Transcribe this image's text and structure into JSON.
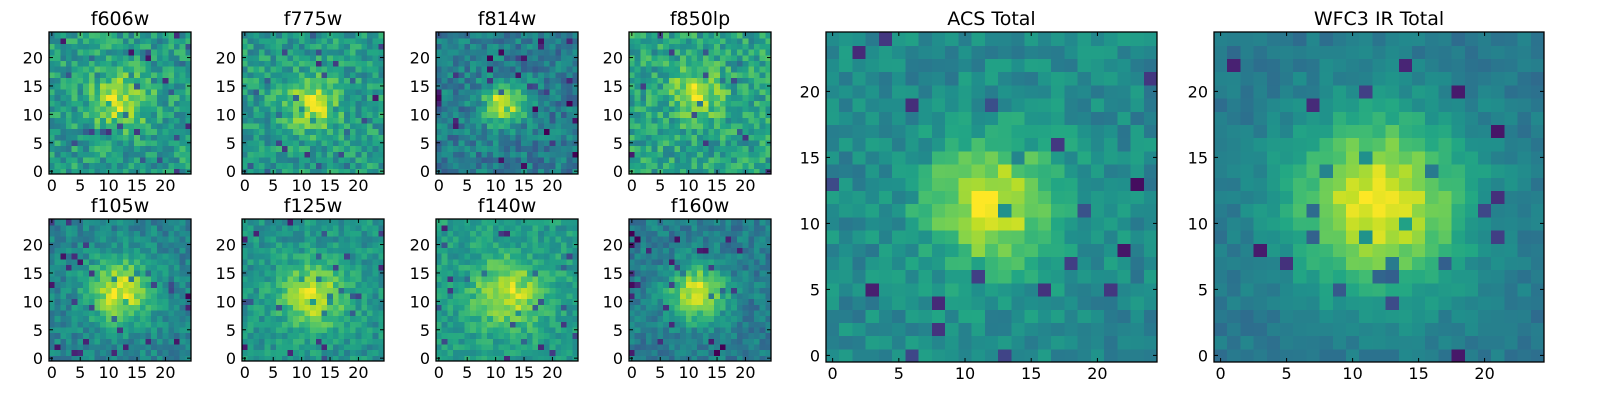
{
  "chart_data": [
    {
      "type": "heatmap",
      "title": "f606w",
      "x_ticks": [
        "0",
        "5",
        "10",
        "15",
        "20"
      ],
      "y_ticks": [
        "0",
        "5",
        "10",
        "15",
        "20"
      ],
      "xlim": [
        0,
        25
      ],
      "ylim": [
        0,
        25
      ],
      "center": [
        12,
        12.5
      ],
      "spread": 3.6,
      "peak_level": 0.9,
      "background_level": 0.55,
      "noise_level": 0.32,
      "seed": 11,
      "colormap": "viridis"
    },
    {
      "type": "heatmap",
      "title": "f775w",
      "x_ticks": [
        "0",
        "5",
        "10",
        "15",
        "20"
      ],
      "y_ticks": [
        "0",
        "5",
        "10",
        "15",
        "20"
      ],
      "xlim": [
        0,
        25
      ],
      "ylim": [
        0,
        25
      ],
      "center": [
        12,
        12
      ],
      "spread": 3.2,
      "peak_level": 0.92,
      "background_level": 0.55,
      "noise_level": 0.3,
      "seed": 23,
      "colormap": "viridis"
    },
    {
      "type": "heatmap",
      "title": "f814w",
      "x_ticks": [
        "0",
        "5",
        "10",
        "15",
        "20"
      ],
      "y_ticks": [
        "0",
        "5",
        "10",
        "15",
        "20"
      ],
      "xlim": [
        0,
        25
      ],
      "ylim": [
        0,
        25
      ],
      "center": [
        11.5,
        12
      ],
      "spread": 2.6,
      "peak_level": 0.95,
      "background_level": 0.42,
      "noise_level": 0.28,
      "seed": 37,
      "colormap": "viridis"
    },
    {
      "type": "heatmap",
      "title": "f850lp",
      "x_ticks": [
        "0",
        "5",
        "10",
        "15",
        "20"
      ],
      "y_ticks": [
        "0",
        "5",
        "10",
        "15",
        "20"
      ],
      "xlim": [
        0,
        25
      ],
      "ylim": [
        0,
        25
      ],
      "center": [
        11.5,
        14
      ],
      "spread": 3.0,
      "peak_level": 0.9,
      "background_level": 0.58,
      "noise_level": 0.32,
      "seed": 41,
      "colormap": "viridis"
    },
    {
      "type": "heatmap",
      "title": "f105w",
      "x_ticks": [
        "0",
        "5",
        "10",
        "15",
        "20"
      ],
      "y_ticks": [
        "0",
        "5",
        "10",
        "15",
        "20"
      ],
      "xlim": [
        0,
        25
      ],
      "ylim": [
        0,
        25
      ],
      "center": [
        12,
        12
      ],
      "spread": 4.0,
      "peak_level": 0.95,
      "background_level": 0.45,
      "noise_level": 0.22,
      "seed": 53,
      "colormap": "viridis"
    },
    {
      "type": "heatmap",
      "title": "f125w",
      "x_ticks": [
        "0",
        "5",
        "10",
        "15",
        "20"
      ],
      "y_ticks": [
        "0",
        "5",
        "10",
        "15",
        "20"
      ],
      "xlim": [
        0,
        25
      ],
      "ylim": [
        0,
        25
      ],
      "center": [
        12,
        11
      ],
      "spread": 4.0,
      "peak_level": 0.93,
      "background_level": 0.52,
      "noise_level": 0.22,
      "seed": 67,
      "colormap": "viridis"
    },
    {
      "type": "heatmap",
      "title": "f140w",
      "x_ticks": [
        "0",
        "5",
        "10",
        "15",
        "20"
      ],
      "y_ticks": [
        "0",
        "5",
        "10",
        "15",
        "20"
      ],
      "xlim": [
        0,
        25
      ],
      "ylim": [
        0,
        25
      ],
      "center": [
        12,
        11.5
      ],
      "spread": 4.2,
      "peak_level": 0.92,
      "background_level": 0.55,
      "noise_level": 0.22,
      "seed": 71,
      "colormap": "viridis"
    },
    {
      "type": "heatmap",
      "title": "f160w",
      "x_ticks": [
        "0",
        "5",
        "10",
        "15",
        "20"
      ],
      "y_ticks": [
        "0",
        "5",
        "10",
        "15",
        "20"
      ],
      "xlim": [
        0,
        25
      ],
      "ylim": [
        0,
        25
      ],
      "center": [
        11.5,
        11.5
      ],
      "spread": 3.4,
      "peak_level": 0.95,
      "background_level": 0.42,
      "noise_level": 0.22,
      "seed": 83,
      "colormap": "viridis"
    },
    {
      "type": "heatmap",
      "title": "ACS Total",
      "x_ticks": [
        "0",
        "5",
        "10",
        "15",
        "20"
      ],
      "y_ticks": [
        "0",
        "5",
        "10",
        "15",
        "20"
      ],
      "xlim": [
        0,
        25
      ],
      "ylim": [
        0,
        25
      ],
      "center": [
        12,
        11.5
      ],
      "spread": 3.4,
      "peak_level": 0.96,
      "background_level": 0.48,
      "noise_level": 0.2,
      "seed": 97,
      "colormap": "viridis"
    },
    {
      "type": "heatmap",
      "title": "WFC3 IR Total",
      "x_ticks": [
        "0",
        "5",
        "10",
        "15",
        "20"
      ],
      "y_ticks": [
        "0",
        "5",
        "10",
        "15",
        "20"
      ],
      "xlim": [
        0,
        25
      ],
      "ylim": [
        0,
        25
      ],
      "center": [
        12,
        11.5
      ],
      "spread": 4.8,
      "peak_level": 0.97,
      "background_level": 0.4,
      "noise_level": 0.12,
      "seed": 101,
      "colormap": "viridis"
    }
  ]
}
